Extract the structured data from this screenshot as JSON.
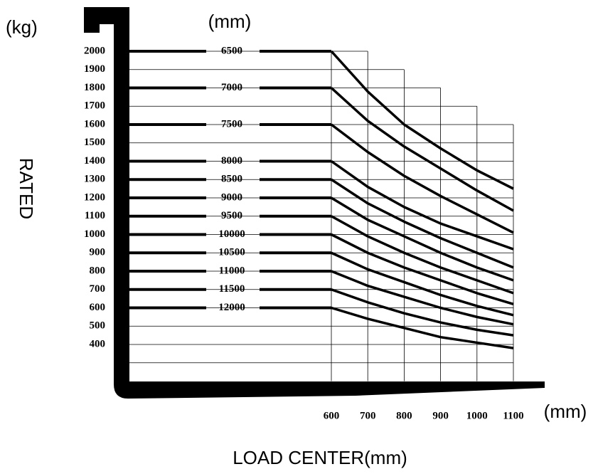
{
  "chart_data": {
    "type": "line",
    "y_unit": "(kg)",
    "series_unit": "(mm)",
    "x_unit": "(mm)",
    "ylabel": "RATED",
    "xlabel": "LOAD CENTER(mm)",
    "color": "#000000",
    "x": [
      600,
      700,
      800,
      900,
      1000,
      1100
    ],
    "xlim": [
      600,
      1100
    ],
    "xticks": [
      600,
      700,
      800,
      900,
      1000,
      1100
    ],
    "ylim": [
      200,
      2000
    ],
    "yticks": [
      2000,
      1900,
      1800,
      1700,
      1600,
      1500,
      1400,
      1300,
      1200,
      1100,
      1000,
      900,
      800,
      700,
      600,
      500,
      400
    ],
    "grid": true,
    "series": [
      {
        "name": "6500",
        "values": [
          2000,
          1780,
          1600,
          1470,
          1350,
          1250
        ]
      },
      {
        "name": "7000",
        "values": [
          1800,
          1620,
          1480,
          1360,
          1240,
          1130
        ]
      },
      {
        "name": "7500",
        "values": [
          1600,
          1450,
          1320,
          1210,
          1110,
          1010
        ]
      },
      {
        "name": "8000",
        "values": [
          1400,
          1260,
          1150,
          1060,
          990,
          920
        ]
      },
      {
        "name": "8500",
        "values": [
          1300,
          1170,
          1070,
          980,
          900,
          820
        ]
      },
      {
        "name": "9000",
        "values": [
          1200,
          1080,
          990,
          900,
          820,
          750
        ]
      },
      {
        "name": "9500",
        "values": [
          1100,
          990,
          900,
          820,
          750,
          680
        ]
      },
      {
        "name": "10000",
        "values": [
          1000,
          900,
          820,
          750,
          680,
          620
        ]
      },
      {
        "name": "10500",
        "values": [
          900,
          810,
          740,
          670,
          610,
          560
        ]
      },
      {
        "name": "11000",
        "values": [
          800,
          720,
          660,
          600,
          550,
          510
        ]
      },
      {
        "name": "11500",
        "values": [
          700,
          630,
          570,
          520,
          480,
          450
        ]
      },
      {
        "name": "12000",
        "values": [
          600,
          540,
          490,
          440,
          410,
          380
        ]
      }
    ]
  }
}
